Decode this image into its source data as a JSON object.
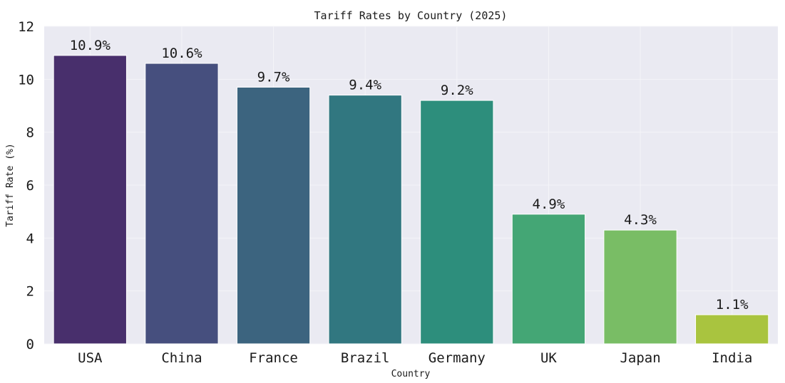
{
  "chart_data": {
    "type": "bar",
    "title": "Tariff Rates by Country (2025)",
    "xlabel": "Country",
    "ylabel": "Tariff Rate (%)",
    "ylim": [
      0,
      12
    ],
    "yticks": [
      0,
      2,
      4,
      6,
      8,
      10,
      12
    ],
    "grid": true,
    "categories": [
      "USA",
      "China",
      "France",
      "Brazil",
      "Germany",
      "UK",
      "Japan",
      "India"
    ],
    "values": [
      10.9,
      10.6,
      9.7,
      9.4,
      9.2,
      4.9,
      4.3,
      1.1
    ],
    "data_labels": [
      "10.9%",
      "10.6%",
      "9.7%",
      "9.4%",
      "9.2%",
      "4.9%",
      "4.3%",
      "1.1%"
    ],
    "colors": [
      "#482f6c",
      "#464f7e",
      "#3c647f",
      "#317780",
      "#2d8e7c",
      "#44a675",
      "#79bd65",
      "#a9c43f"
    ],
    "background": "#eaeaf2",
    "grid_color": "#f4f4f8"
  }
}
